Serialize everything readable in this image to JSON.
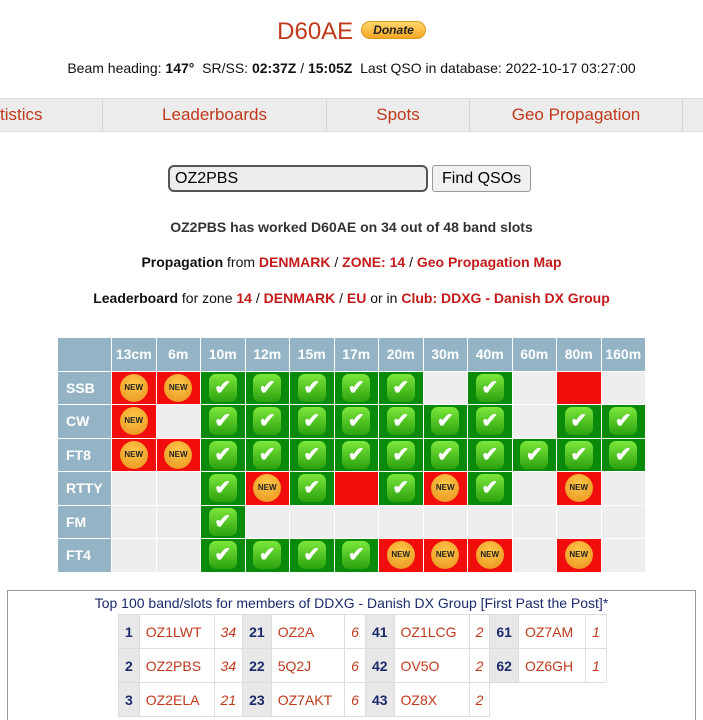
{
  "header": {
    "title": "D60AE",
    "donate": "Donate"
  },
  "info": {
    "beam_label": "Beam heading:",
    "beam": "147°",
    "srss_label": "SR/SS:",
    "sr": "02:37Z",
    "sep": "/",
    "ss": "15:05Z",
    "last_label": "Last QSO in database:",
    "last": "2022-10-17 03:27:00"
  },
  "nav": [
    "tistics",
    "Leaderboards",
    "Spots",
    "Geo Propagation"
  ],
  "search": {
    "value": "OZ2PBS",
    "button": "Find QSOs"
  },
  "summary": "OZ2PBS has worked D60AE on 34 out of 48 band slots",
  "propagation": {
    "label": "Propagation",
    "from": "from",
    "country": "DENMARK",
    "zone": "ZONE: 14",
    "map": "Geo Propagation Map",
    "sep": "/"
  },
  "leaderboard": {
    "label": "Leaderboard",
    "for_zone": "for zone",
    "zone": "14",
    "country": "DENMARK",
    "continent": "EU",
    "or_in": "or in",
    "club": "Club: DDXG - Danish DX Group",
    "sep": "/"
  },
  "grid": {
    "bands": [
      "13cm",
      "6m",
      "10m",
      "12m",
      "15m",
      "17m",
      "20m",
      "30m",
      "40m",
      "60m",
      "80m",
      "160m"
    ],
    "new_label": "NEW",
    "check": "✔",
    "legend_codes": {
      "C": "worked",
      "N": "new",
      "R": "not worked (active)",
      "": "no activity"
    },
    "colors": {
      "worked": "#0a8a0a",
      "new": "#f20d0d",
      "empty": "#eeeeee",
      "header": "#94b3c4"
    },
    "rows": [
      {
        "mode": "SSB",
        "cells": [
          "N",
          "N",
          "C",
          "C",
          "C",
          "C",
          "C",
          "",
          "C",
          "",
          "R",
          ""
        ]
      },
      {
        "mode": "CW",
        "cells": [
          "N",
          "",
          "C",
          "C",
          "C",
          "C",
          "C",
          "C",
          "C",
          "",
          "C",
          "C"
        ]
      },
      {
        "mode": "FT8",
        "cells": [
          "N",
          "N",
          "C",
          "C",
          "C",
          "C",
          "C",
          "C",
          "C",
          "C",
          "C",
          "C"
        ]
      },
      {
        "mode": "RTTY",
        "cells": [
          "",
          "",
          "C",
          "N",
          "C",
          "R",
          "C",
          "N",
          "C",
          "",
          "N",
          ""
        ]
      },
      {
        "mode": "FM",
        "cells": [
          "",
          "",
          "C",
          "",
          "",
          "",
          "",
          "",
          "",
          "",
          "",
          ""
        ]
      },
      {
        "mode": "FT4",
        "cells": [
          "",
          "",
          "C",
          "C",
          "C",
          "C",
          "N",
          "N",
          "N",
          "",
          "N",
          ""
        ]
      }
    ]
  },
  "top100": {
    "caption": "Top 100 band/slots for members of DDXG - Danish DX Group [First Past the Post]*",
    "rows": [
      [
        {
          "rank": "1",
          "call": "OZ1LWT",
          "count": "34"
        },
        {
          "rank": "21",
          "call": "OZ2A",
          "count": "6"
        },
        {
          "rank": "41",
          "call": "OZ1LCG",
          "count": "2"
        },
        {
          "rank": "61",
          "call": "OZ7AM",
          "count": "1"
        }
      ],
      [
        {
          "rank": "2",
          "call": "OZ2PBS",
          "count": "34"
        },
        {
          "rank": "22",
          "call": "5Q2J",
          "count": "6"
        },
        {
          "rank": "42",
          "call": "OV5O",
          "count": "2"
        },
        {
          "rank": "62",
          "call": "OZ6GH",
          "count": "1"
        }
      ],
      [
        {
          "rank": "3",
          "call": "OZ2ELA",
          "count": "21"
        },
        {
          "rank": "23",
          "call": "OZ7AKT",
          "count": "6"
        },
        {
          "rank": "43",
          "call": "OZ8X",
          "count": "2"
        }
      ]
    ]
  }
}
